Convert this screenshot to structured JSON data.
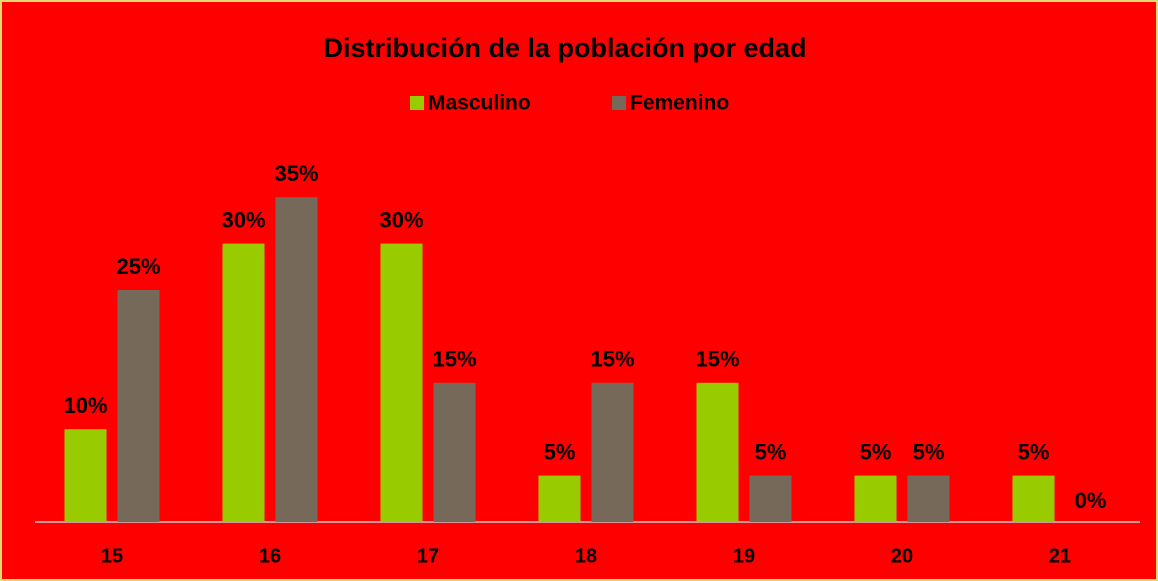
{
  "chart_data": {
    "type": "bar",
    "title": "Distribución de la población por edad",
    "categories": [
      "15",
      "16",
      "17",
      "18",
      "19",
      "20",
      "21"
    ],
    "series": [
      {
        "name": "Masculino",
        "color": "#99cc00",
        "values": [
          10,
          30,
          30,
          5,
          15,
          5,
          5
        ],
        "value_labels": [
          "10%",
          "30%",
          "30%",
          "5%",
          "15%",
          "5%",
          "5%"
        ]
      },
      {
        "name": "Femenino",
        "color": "#77695a",
        "values": [
          25,
          35,
          15,
          15,
          5,
          5,
          0
        ],
        "value_labels": [
          "25%",
          "35%",
          "15%",
          "15%",
          "5%",
          "5%",
          "0%"
        ]
      }
    ],
    "legend": "top",
    "background": "#ff0000"
  }
}
